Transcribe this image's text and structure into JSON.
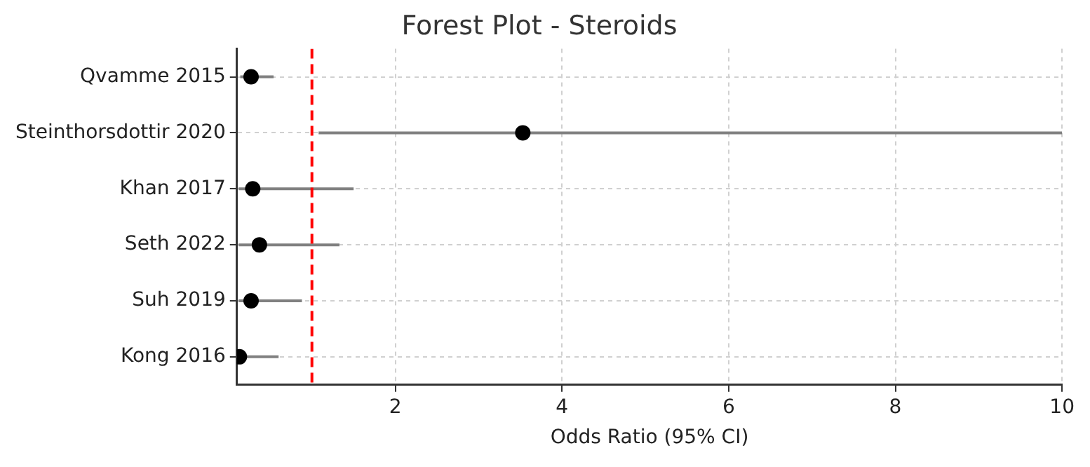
{
  "chart_data": {
    "type": "scatter",
    "orientation": "horizontal",
    "title": "Forest Plot - Steroids",
    "xlabel": "Odds Ratio (95% CI)",
    "categories": [
      "Qvamme 2015",
      "Steinthorsdottir 2020",
      "Khan 2017",
      "Seth 2022",
      "Suh 2019",
      "Kong 2016"
    ],
    "values": [
      0.27,
      3.53,
      0.29,
      0.37,
      0.27,
      0.13
    ],
    "errors": [
      [
        0.14,
        0.54
      ],
      [
        1.08,
        10
      ],
      [
        0.12,
        1.5
      ],
      [
        0.12,
        1.33
      ],
      [
        0.12,
        0.88
      ],
      [
        0.1,
        0.6
      ]
    ],
    "color": "#000000",
    "marker": "circle",
    "xlim": [
      0.1,
      10
    ],
    "xticks": [
      2,
      4,
      6,
      8,
      10
    ],
    "grid": true,
    "ref_lines": [
      {
        "axis": "x",
        "value": 1,
        "color": "#ff0000",
        "line_style": "dashed"
      }
    ]
  }
}
